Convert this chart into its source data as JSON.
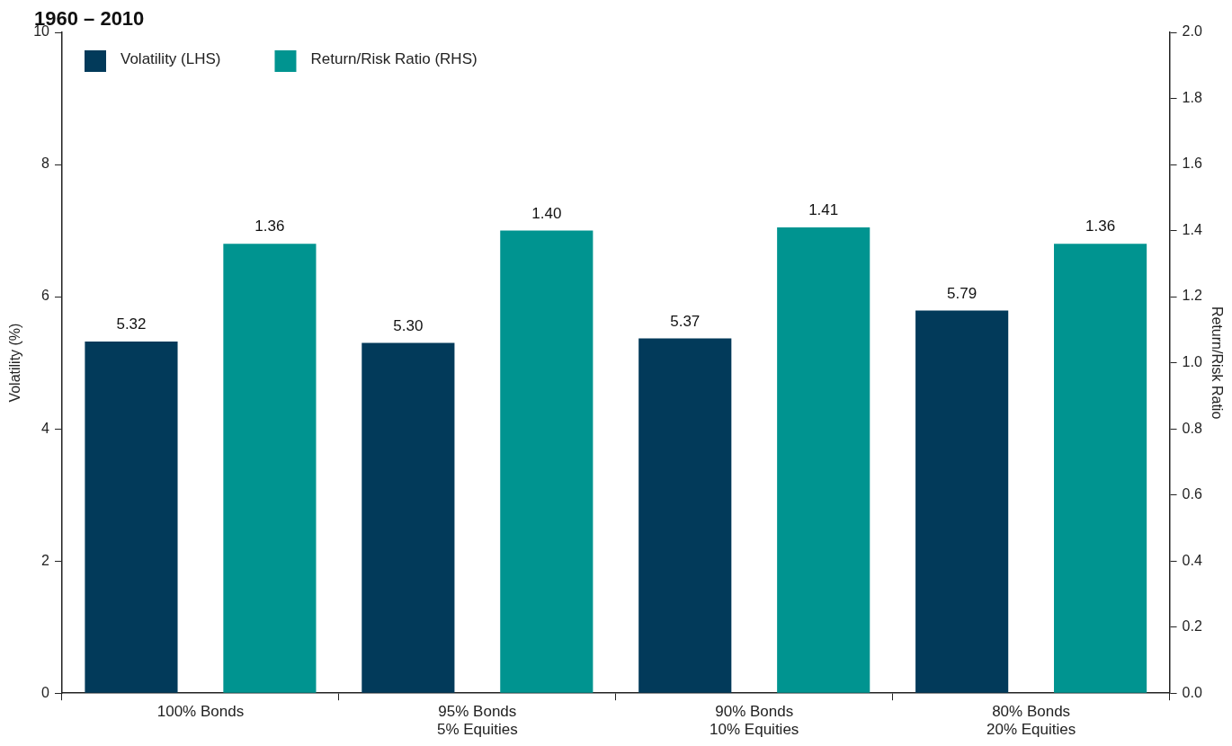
{
  "chart_data": {
    "type": "bar",
    "title": "1960 – 2010",
    "categories": [
      "100% Bonds",
      "95% Bonds\n5% Equities",
      "90% Bonds\n10% Equities",
      "80% Bonds\n20% Equities"
    ],
    "series": [
      {
        "name": "Volatility (LHS)",
        "color": "#023a5a",
        "values": [
          5.32,
          5.3,
          5.37,
          5.79
        ],
        "value_labels": [
          "5.32",
          "5.30",
          "5.37",
          "5.79"
        ]
      },
      {
        "name": "Return/Risk Ratio (RHS)",
        "color": "#009490",
        "axis": "y2",
        "values": [
          1.36,
          1.4,
          1.41,
          1.36
        ],
        "value_labels": [
          "1.36",
          "1.40",
          "1.41",
          "1.36"
        ]
      }
    ],
    "ylabel": "Volatility (%)",
    "y2label": "Return/Risk Ratio",
    "ylim": [
      0,
      10
    ],
    "yticks": [
      0,
      2,
      4,
      6,
      8,
      10
    ],
    "y2lim": [
      0,
      2
    ],
    "y2ticks": [
      {
        "value": 0,
        "label": "0.0"
      },
      {
        "value": 0.2,
        "label": "0.2"
      },
      {
        "value": 0.4,
        "label": "0.4"
      },
      {
        "value": 0.6,
        "label": "0.6"
      },
      {
        "value": 0.8,
        "label": "0.8"
      },
      {
        "value": 1,
        "label": "1.0"
      },
      {
        "value": 1.2,
        "label": "1.2"
      },
      {
        "value": 1.4,
        "label": "1.4"
      },
      {
        "value": 1.6,
        "label": "1.6"
      },
      {
        "value": 1.8,
        "label": "1.8"
      },
      {
        "value": 2,
        "label": "2.0"
      }
    ],
    "grid": false,
    "legend": "top left"
  }
}
